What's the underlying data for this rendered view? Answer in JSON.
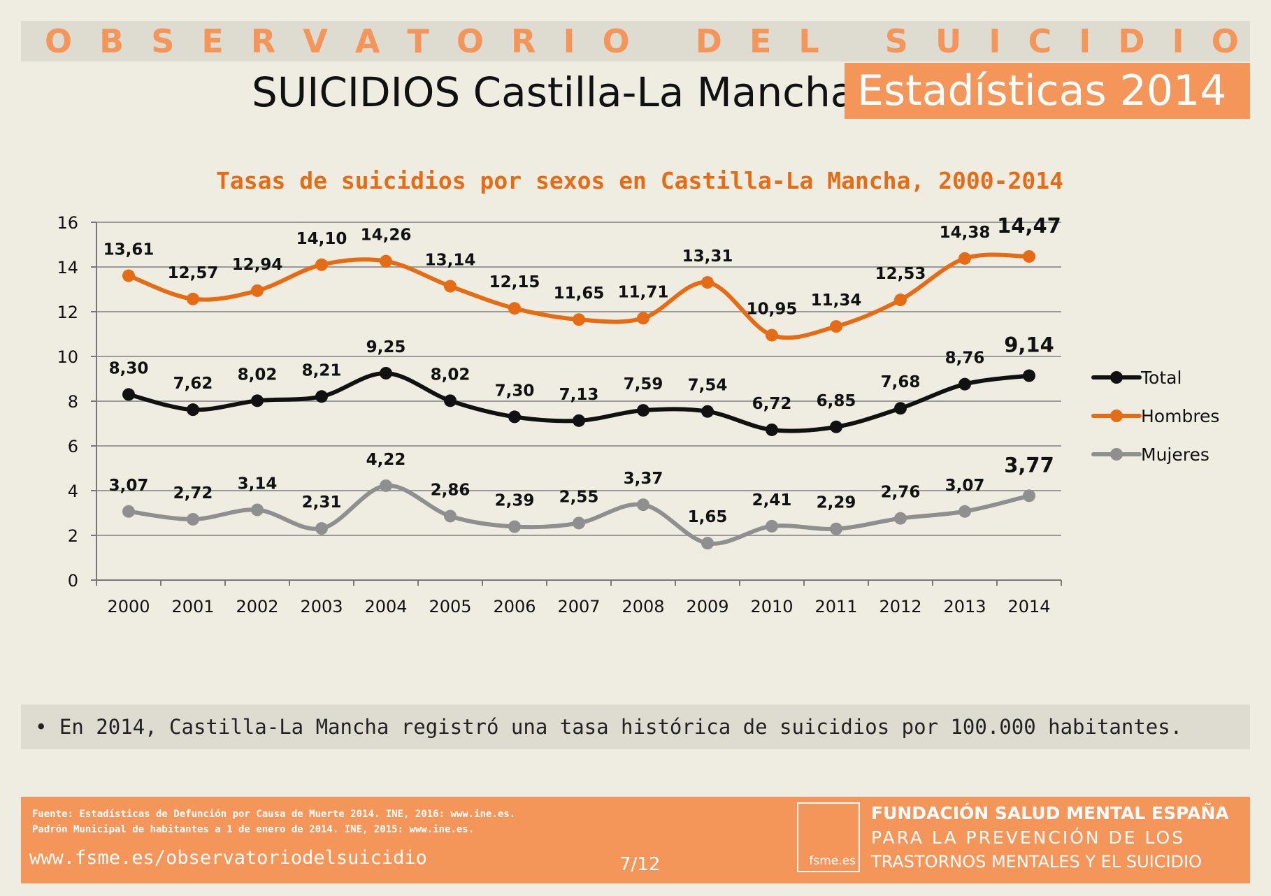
{
  "header": {
    "banner": "OBSERVATORIO DEL SUICIDIO",
    "title": "SUICIDIOS Castilla-La Mancha",
    "badge": "Estadísticas 2014"
  },
  "chart_data": {
    "type": "line",
    "title": "Tasas de suicidios por sexos en Castilla-La Mancha, 2000-2014",
    "categories": [
      "2000",
      "2001",
      "2002",
      "2003",
      "2004",
      "2005",
      "2006",
      "2007",
      "2008",
      "2009",
      "2010",
      "2011",
      "2012",
      "2013",
      "2014"
    ],
    "ylim": [
      0,
      16
    ],
    "yticks": [
      0,
      2,
      4,
      6,
      8,
      10,
      12,
      14,
      16
    ],
    "grid": true,
    "legend_position": "right",
    "series": [
      {
        "name": "Total",
        "color": "#111111",
        "values": [
          8.3,
          7.62,
          8.02,
          8.21,
          9.25,
          8.02,
          7.3,
          7.13,
          7.59,
          7.54,
          6.72,
          6.85,
          7.68,
          8.76,
          9.14
        ],
        "labels": [
          "8,30",
          "7,62",
          "8,02",
          "8,21",
          "9,25",
          "8,02",
          "7,30",
          "7,13",
          "7,59",
          "7,54",
          "6,72",
          "6,85",
          "7,68",
          "8,76",
          "9,14"
        ]
      },
      {
        "name": "Hombres",
        "color": "#e56c14",
        "values": [
          13.61,
          12.57,
          12.94,
          14.1,
          14.26,
          13.14,
          12.15,
          11.65,
          11.71,
          13.31,
          10.95,
          11.34,
          12.53,
          14.38,
          14.47
        ],
        "labels": [
          "13,61",
          "12,57",
          "12,94",
          "14,10",
          "14,26",
          "13,14",
          "12,15",
          "11,65",
          "11,71",
          "13,31",
          "10,95",
          "11,34",
          "12,53",
          "14,38",
          "14,47"
        ]
      },
      {
        "name": "Mujeres",
        "color": "#8f8f8f",
        "values": [
          3.07,
          2.72,
          3.14,
          2.31,
          4.22,
          2.86,
          2.39,
          2.55,
          3.37,
          1.65,
          2.41,
          2.29,
          2.76,
          3.07,
          3.77
        ],
        "labels": [
          "3,07",
          "2,72",
          "3,14",
          "2,31",
          "4,22",
          "2,86",
          "2,39",
          "2,55",
          "3,37",
          "1,65",
          "2,41",
          "2,29",
          "2,76",
          "3,07",
          "3,77"
        ]
      }
    ]
  },
  "note": "• En 2014, Castilla-La Mancha registró una tasa histórica de suicidios por 100.000 habitantes.",
  "footer": {
    "source_line1": "Fuente: Estadísticas de Defunción por Causa de Muerte 2014. INE, 2016: www.ine.es.",
    "source_line2": "Padrón Municipal de habitantes a 1 de enero de 2014. INE, 2015: www.ine.es.",
    "website": "www.fsme.es/observatoriodelsuicidio",
    "page": "7/12",
    "logo_text": "fsme.es",
    "org_line1": "FUNDACIÓN SALUD MENTAL ESPAÑA",
    "org_line2": "PARA LA PREVENCIÓN DE LOS",
    "org_line3": "TRASTORNOS MENTALES Y EL SUICIDIO"
  },
  "colors": {
    "accent": "#f4955a",
    "background": "#efece1",
    "band": "#dedbd1"
  }
}
